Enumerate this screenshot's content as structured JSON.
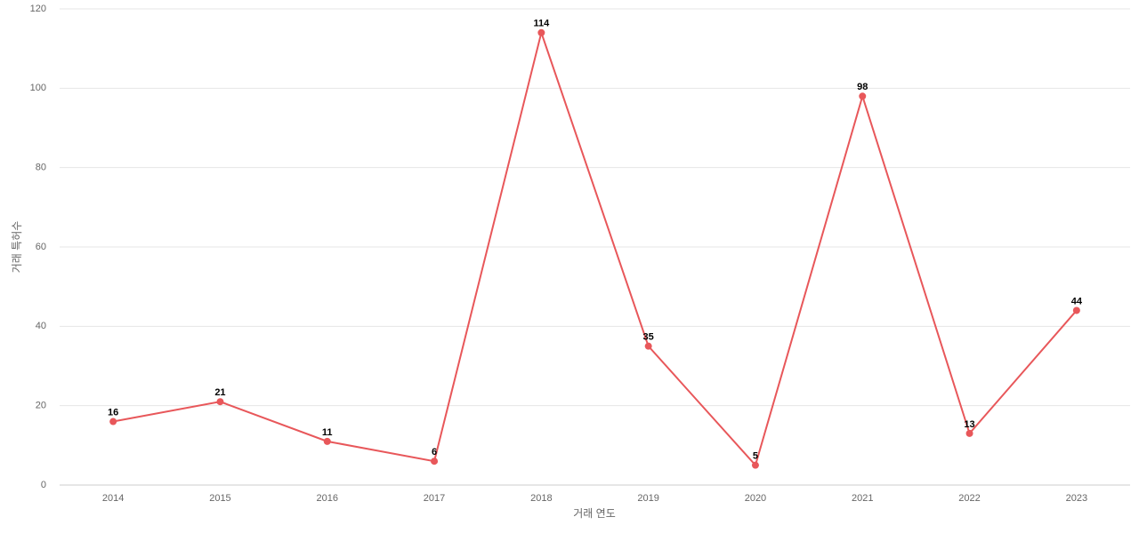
{
  "chart_data": {
    "type": "line",
    "x_label": "거래 연도",
    "y_label": "거래 특허수",
    "categories": [
      "2014",
      "2015",
      "2016",
      "2017",
      "2018",
      "2019",
      "2020",
      "2021",
      "2022",
      "2023"
    ],
    "values": [
      16,
      21,
      11,
      6,
      114,
      35,
      5,
      98,
      13,
      44
    ],
    "color": "#e8575a",
    "ylim": [
      0,
      120
    ],
    "yticks": [
      0,
      20,
      40,
      60,
      80,
      100,
      120
    ],
    "grid": true,
    "data_labels": true
  }
}
